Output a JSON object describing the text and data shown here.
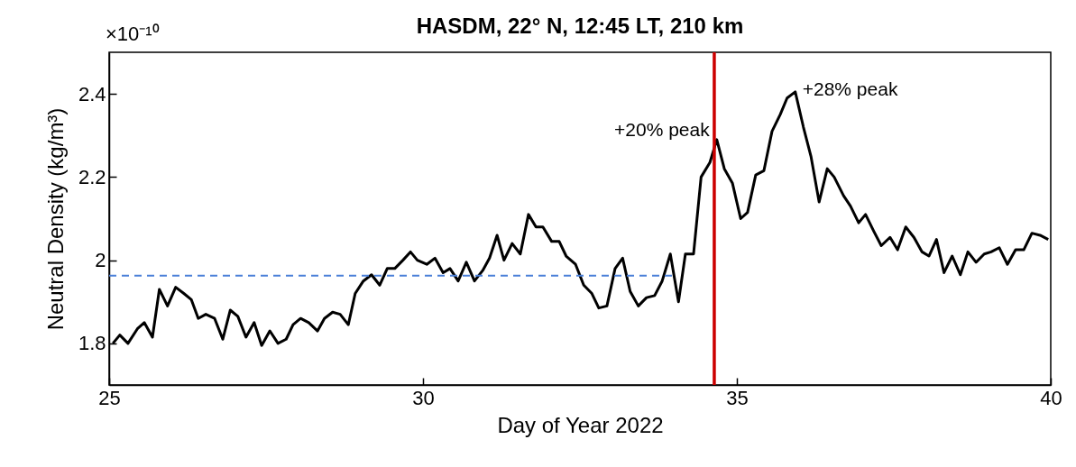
{
  "chart_data": {
    "type": "line",
    "title": "HASDM, 22° N, 12:45 LT, 210 km",
    "xlabel": "Day of Year 2022",
    "ylabel": "Neutral Density (kg/m³)",
    "xlim": [
      25,
      40
    ],
    "xticks": [
      25,
      30,
      35,
      40
    ],
    "ylim": [
      1.7,
      2.5
    ],
    "yticks": [
      1.8,
      2,
      2.2,
      2.4
    ],
    "grid": false,
    "marker": "none",
    "series": [
      {
        "color": "#000000",
        "line_style": "solid",
        "x": [
          25.06,
          25.17,
          25.3,
          25.45,
          25.56,
          25.69,
          25.8,
          25.93,
          26.06,
          26.19,
          26.31,
          26.42,
          26.54,
          26.68,
          26.81,
          26.93,
          27.05,
          27.18,
          27.31,
          27.43,
          27.56,
          27.69,
          27.82,
          27.93,
          28.05,
          28.18,
          28.32,
          28.43,
          28.56,
          28.68,
          28.81,
          28.92,
          29.05,
          29.18,
          29.31,
          29.43,
          29.55,
          29.68,
          29.8,
          29.91,
          30.06,
          30.19,
          30.32,
          30.43,
          30.56,
          30.69,
          30.82,
          30.95,
          31.06,
          31.18,
          31.29,
          31.42,
          31.55,
          31.68,
          31.8,
          31.91,
          32.05,
          32.17,
          32.28,
          32.43,
          32.56,
          32.69,
          32.8,
          32.93,
          33.06,
          33.18,
          33.3,
          33.43,
          33.56,
          33.69,
          33.81,
          33.94,
          34.07,
          34.18,
          34.31,
          34.43,
          34.57,
          34.68,
          34.8,
          34.93,
          35.06,
          35.17,
          35.3,
          35.43,
          35.56,
          35.69,
          35.8,
          35.93,
          36.06,
          36.18,
          36.31,
          36.44,
          36.55,
          36.7,
          36.81,
          36.94,
          37.05,
          37.18,
          37.3,
          37.44,
          37.56,
          37.69,
          37.82,
          37.95,
          38.06,
          38.18,
          38.3,
          38.43,
          38.56,
          38.68,
          38.81,
          38.94,
          39.05,
          39.18,
          39.31,
          39.44,
          39.57,
          39.7,
          39.83,
          39.96
        ],
        "values": [
          1.8,
          1.82,
          1.8,
          1.835,
          1.85,
          1.815,
          1.93,
          1.89,
          1.935,
          1.92,
          1.905,
          1.86,
          1.87,
          1.86,
          1.81,
          1.88,
          1.865,
          1.815,
          1.85,
          1.795,
          1.83,
          1.8,
          1.81,
          1.845,
          1.86,
          1.85,
          1.83,
          1.86,
          1.875,
          1.87,
          1.845,
          1.92,
          1.95,
          1.965,
          1.94,
          1.98,
          1.98,
          2.0,
          2.02,
          2.0,
          1.99,
          2.005,
          1.97,
          1.98,
          1.95,
          1.995,
          1.95,
          1.975,
          2.005,
          2.06,
          2.0,
          2.04,
          2.015,
          2.11,
          2.08,
          2.08,
          2.045,
          2.045,
          2.01,
          1.99,
          1.94,
          1.92,
          1.885,
          1.89,
          1.98,
          2.005,
          1.925,
          1.89,
          1.91,
          1.915,
          1.95,
          2.015,
          1.9,
          2.015,
          2.015,
          2.2,
          2.235,
          2.29,
          2.22,
          2.185,
          2.1,
          2.115,
          2.205,
          2.215,
          2.31,
          2.35,
          2.39,
          2.405,
          2.32,
          2.25,
          2.14,
          2.22,
          2.2,
          2.155,
          2.13,
          2.09,
          2.11,
          2.07,
          2.035,
          2.055,
          2.025,
          2.08,
          2.055,
          2.02,
          2.01,
          2.05,
          1.97,
          2.01,
          1.965,
          2.02,
          1.995,
          2.015,
          2.02,
          2.03,
          1.99,
          2.025,
          2.025,
          2.065,
          2.06,
          2.05
        ]
      },
      {
        "type": "line",
        "color": "#4a7fd8",
        "line_style": "dashed",
        "x": [
          25,
          34.0
        ],
        "values": [
          1.963,
          1.963
        ]
      }
    ],
    "ref_lines": [
      {
        "axis": "x",
        "value": 34.64,
        "color": "#cc0000",
        "line_style": "solid"
      }
    ],
    "annotations": [
      "×10⁻¹⁰",
      {
        "text": "+20% peak",
        "x": 34.68,
        "y": 2.29
      },
      {
        "text": "+28% peak",
        "x": 35.93,
        "y": 2.405
      }
    ]
  }
}
